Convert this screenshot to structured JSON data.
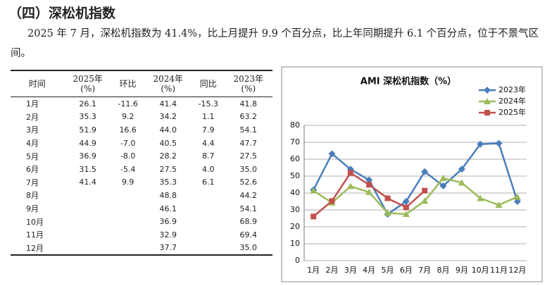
{
  "heading": "（四）深松机指数",
  "paragraph": "2025 年 7 月，深松机指数为 41.4%，比上月提升 9.9 个百分点，比上年同期提升 6.1 个百分点，位于不景气区间。",
  "table": {
    "header": [
      "时间",
      "2025年\n(%)",
      "环比",
      "2024年\n(%)",
      "同比",
      "2023年\n(%)"
    ],
    "rows": [
      [
        "1月",
        "26.1",
        "-11.6",
        "41.4",
        "-15.3",
        "41.8"
      ],
      [
        "2月",
        "35.3",
        "9.2",
        "34.2",
        "1.1",
        "63.2"
      ],
      [
        "3月",
        "51.9",
        "16.6",
        "44.0",
        "7.9",
        "54.1"
      ],
      [
        "4月",
        "44.9",
        "-7.0",
        "40.5",
        "4.4",
        "47.7"
      ],
      [
        "5月",
        "36.9",
        "-8.0",
        "28.2",
        "8.7",
        "27.5"
      ],
      [
        "6月",
        "31.5",
        "-5.4",
        "27.5",
        "4.0",
        "35.0"
      ],
      [
        "7月",
        "41.4",
        "9.9",
        "35.3",
        "6.1",
        "52.6"
      ],
      [
        "8月",
        null,
        null,
        "48.8",
        null,
        "44.2"
      ],
      [
        "9月",
        null,
        null,
        "46.1",
        null,
        "54.1"
      ],
      [
        "10月",
        null,
        null,
        "36.9",
        null,
        "68.9"
      ],
      [
        "11月",
        null,
        null,
        "32.9",
        null,
        "69.4"
      ],
      [
        "12月",
        null,
        null,
        "37.7",
        null,
        "35.0"
      ]
    ]
  },
  "chart_data": {
    "type": "line",
    "title": "AMI 深松机指数（%）",
    "categories": [
      "1月",
      "2月",
      "3月",
      "4月",
      "5月",
      "6月",
      "7月",
      "8月",
      "9月",
      "10月",
      "11月",
      "12月"
    ],
    "series": [
      {
        "name": "2023年",
        "color": "#4a7ebb",
        "marker": "diamond",
        "values": [
          41.8,
          63.2,
          54.1,
          47.7,
          27.5,
          35.0,
          52.6,
          44.2,
          54.1,
          68.9,
          69.4,
          35.0
        ]
      },
      {
        "name": "2024年",
        "color": "#9bbb59",
        "marker": "triangle",
        "values": [
          41.4,
          34.2,
          44.0,
          40.5,
          28.2,
          27.5,
          35.3,
          48.8,
          46.1,
          36.9,
          32.9,
          37.7
        ]
      },
      {
        "name": "2025年",
        "color": "#c0504d",
        "marker": "square",
        "values": [
          26.1,
          35.3,
          51.9,
          44.9,
          36.9,
          31.5,
          41.4,
          null,
          null,
          null,
          null,
          null
        ]
      }
    ],
    "ylim": [
      0,
      80
    ],
    "yticks": [
      0,
      10,
      20,
      30,
      40,
      50,
      60,
      70,
      80
    ],
    "grid": true,
    "legend": "top-right"
  }
}
